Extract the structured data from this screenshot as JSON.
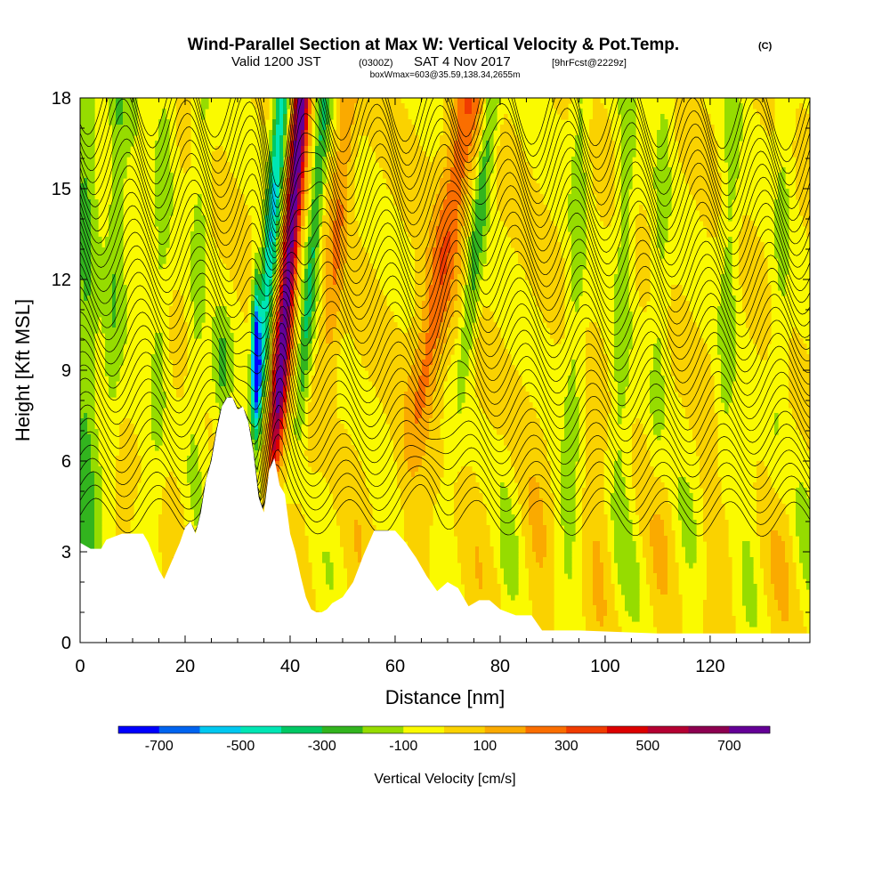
{
  "title": {
    "main": "Wind-Parallel Section at Max W: Vertical Velocity & Pot.Temp.",
    "copyright": "(C)",
    "valid_prefix": "Valid 1200 JST",
    "utc": "(0300Z)",
    "date": "SAT 4 Nov 2017",
    "forecast": "[9hrFcst@2229z]",
    "box": "boxWmax=603@35.59,138.34,2655m"
  },
  "chart_data": {
    "type": "heatmap",
    "title": "Wind-Parallel Section at Max W: Vertical Velocity & Pot.Temp.",
    "xlabel": "Distance [nm]",
    "ylabel": "Height [Kft MSL]",
    "xlim": [
      0,
      139
    ],
    "ylim": [
      0,
      18
    ],
    "x_ticks": [
      0,
      20,
      40,
      60,
      80,
      100,
      120
    ],
    "y_ticks": [
      0,
      3,
      6,
      9,
      12,
      15,
      18
    ],
    "colorbar": {
      "label": "Vertical Velocity [cm/s]",
      "bounds": [
        -800,
        800
      ],
      "step": 100,
      "tick_labels": [
        "-700",
        "-500",
        "-300",
        "-100",
        "100",
        "300",
        "500",
        "700"
      ],
      "colors": [
        "#0000ff",
        "#0064f0",
        "#00c8f0",
        "#00e6b4",
        "#00c864",
        "#32b41e",
        "#96dc00",
        "#fafa00",
        "#fad200",
        "#faaa00",
        "#fa6e00",
        "#f03c00",
        "#dc0000",
        "#b40032",
        "#8c0050",
        "#640096"
      ]
    },
    "terrain_kft": [
      [
        0,
        3.3
      ],
      [
        2,
        3.1
      ],
      [
        4,
        3.1
      ],
      [
        5,
        3.4
      ],
      [
        8,
        3.6
      ],
      [
        12,
        3.6
      ],
      [
        13,
        3.3
      ],
      [
        15,
        2.4
      ],
      [
        16,
        2.1
      ],
      [
        17,
        2.5
      ],
      [
        18,
        2.9
      ],
      [
        19,
        3.3
      ],
      [
        20,
        3.8
      ],
      [
        21,
        4.0
      ],
      [
        22,
        3.6
      ],
      [
        23,
        4.3
      ],
      [
        24,
        5.4
      ],
      [
        25,
        6.0
      ],
      [
        26,
        7.0
      ],
      [
        27,
        7.8
      ],
      [
        28,
        8.1
      ],
      [
        29,
        8.1
      ],
      [
        30,
        7.7
      ],
      [
        31,
        7.8
      ],
      [
        32,
        7.3
      ],
      [
        33,
        6.3
      ],
      [
        34,
        4.8
      ],
      [
        35,
        4.3
      ],
      [
        36,
        5.7
      ],
      [
        37,
        6.1
      ],
      [
        38,
        5.2
      ],
      [
        39,
        4.9
      ],
      [
        40,
        3.6
      ],
      [
        41,
        3.0
      ],
      [
        42,
        2.2
      ],
      [
        43,
        1.5
      ],
      [
        44,
        1.1
      ],
      [
        45,
        1.0
      ],
      [
        46,
        1.0
      ],
      [
        47,
        1.1
      ],
      [
        48,
        1.3
      ],
      [
        50,
        1.5
      ],
      [
        52,
        2.0
      ],
      [
        54,
        2.9
      ],
      [
        56,
        3.7
      ],
      [
        58,
        3.7
      ],
      [
        60,
        3.7
      ],
      [
        62,
        3.3
      ],
      [
        64,
        2.8
      ],
      [
        66,
        2.2
      ],
      [
        68,
        1.7
      ],
      [
        70,
        2.0
      ],
      [
        72,
        1.8
      ],
      [
        74,
        1.2
      ],
      [
        76,
        1.4
      ],
      [
        78,
        1.4
      ],
      [
        80,
        1.1
      ],
      [
        83,
        0.9
      ],
      [
        86,
        0.9
      ],
      [
        88,
        0.4
      ],
      [
        95,
        0.4
      ],
      [
        110,
        0.3
      ],
      [
        125,
        0.3
      ],
      [
        139,
        0.3
      ]
    ],
    "series": [
      {
        "values": [
          [
            37.5,
            -450
          ],
          [
            38.5,
            750
          ],
          [
            34,
            -650
          ],
          [
            44,
            -300
          ],
          [
            69,
            300
          ],
          [
            76.5,
            -250
          ],
          [
            48,
            250
          ]
        ]
      }
    ]
  }
}
